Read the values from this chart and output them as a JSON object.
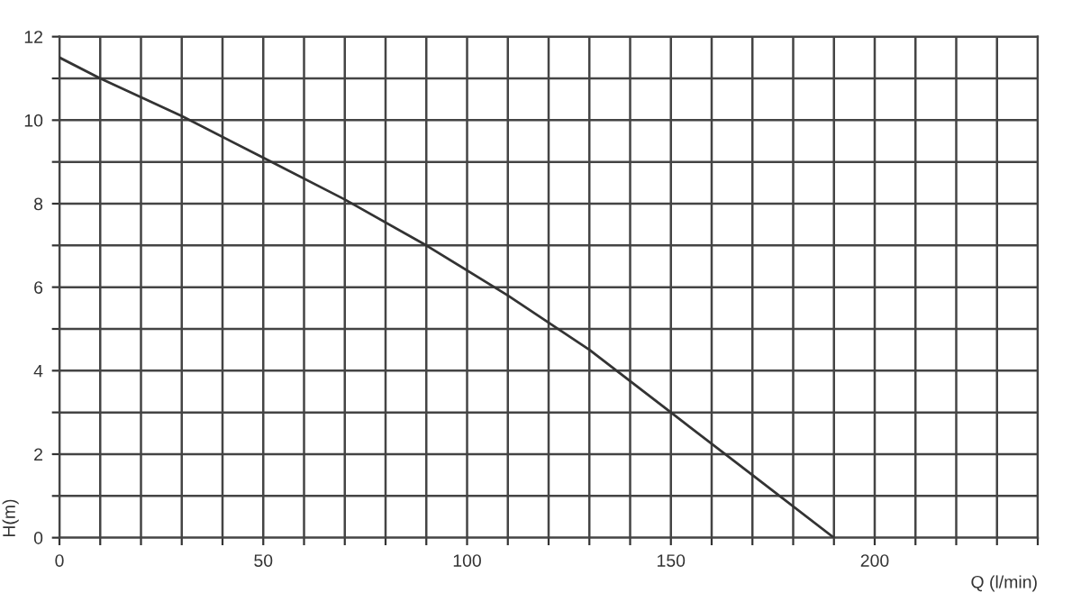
{
  "chart_data": {
    "type": "line",
    "xlabel": "Q (l/min)",
    "ylabel": "H(m)",
    "x": [
      0,
      10,
      30,
      50,
      70,
      90,
      110,
      130,
      150,
      170,
      190
    ],
    "series": [
      {
        "color": "#333333",
        "values": [
          11.5,
          11.0,
          10.1,
          9.1,
          8.1,
          7.0,
          5.8,
          4.5,
          3.0,
          1.5,
          0
        ]
      }
    ],
    "xlim": [
      0,
      240
    ],
    "ylim": [
      0,
      12
    ],
    "xticks": [
      0,
      {
        "value": 10,
        "label": null
      },
      {
        "value": 20,
        "label": null
      },
      {
        "value": 30,
        "label": null
      },
      {
        "value": 40,
        "label": null
      },
      50,
      {
        "value": 60,
        "label": null
      },
      {
        "value": 70,
        "label": null
      },
      {
        "value": 80,
        "label": null
      },
      {
        "value": 90,
        "label": null
      },
      100,
      {
        "value": 110,
        "label": null
      },
      {
        "value": 120,
        "label": null
      },
      {
        "value": 130,
        "label": null
      },
      {
        "value": 140,
        "label": null
      },
      150,
      {
        "value": 160,
        "label": null
      },
      {
        "value": 170,
        "label": null
      },
      {
        "value": 180,
        "label": null
      },
      {
        "value": 190,
        "label": null
      },
      200,
      {
        "value": 210,
        "label": null
      },
      {
        "value": 220,
        "label": null
      },
      {
        "value": 230,
        "label": null
      },
      {
        "value": 240,
        "label": null
      }
    ],
    "yticks": [
      0,
      {
        "value": 1,
        "label": null
      },
      2,
      {
        "value": 3,
        "label": null
      },
      4,
      {
        "value": 5,
        "label": null
      },
      6,
      {
        "value": 7,
        "label": null
      },
      8,
      {
        "value": 9,
        "label": null
      },
      10,
      {
        "value": 11,
        "label": null
      },
      12
    ],
    "grid": true,
    "marker": "none",
    "line_style": "solid"
  }
}
